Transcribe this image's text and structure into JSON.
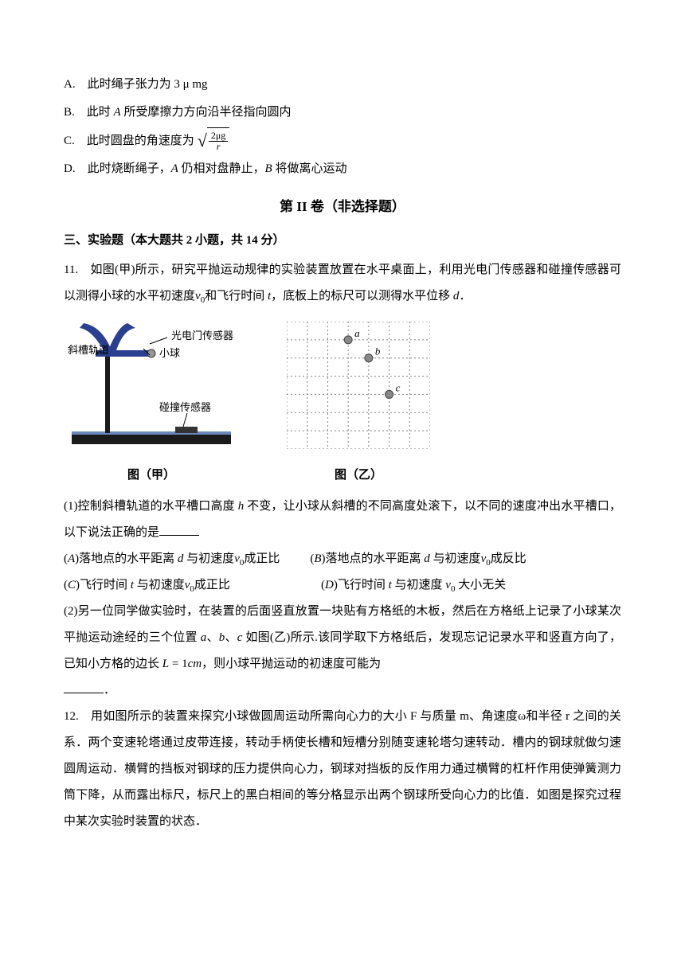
{
  "optA": "A. 此时绳子张力为 3 μ mg",
  "optB_pre": "B. 此时 ",
  "optB_A": "A",
  "optB_post": " 所受摩擦力方向沿半径指向圆内",
  "optC_pre": "C. 此时圆盘的角速度为",
  "optC_frac_num": "2μg",
  "optC_frac_den": "r",
  "optD_pre": "D. 此时烧断绳子，",
  "optD_A": "A",
  "optD_mid": " 仍相对盘静止，",
  "optD_B": "B",
  "optD_post": " 将做离心运动",
  "section2": "第 II 卷（非选择题）",
  "subsection3": "三、实验题（本大题共 2 小题，共 14 分）",
  "q11_num": "11.",
  "q11_body_1": " 如图(甲)所示，研究平抛运动规律的实验装置放置在水平桌面上，利用光电门传感器和碰撞传感器可以测得小球的水平初速度",
  "q11_v0a": "v",
  "q11_v0b": "0",
  "q11_body_2": "和飞行时间 ",
  "q11_t": "t",
  "q11_body_3": "，底板上的标尺可以测得水平位移 ",
  "q11_d": "d",
  "q11_period": "．",
  "fig_labels": {
    "sensor": "光电门传感器",
    "track": "斜槽轨道",
    "ball": "小球",
    "collision": "碰撞传感器",
    "caption1": "图（甲）",
    "caption2": "图（乙）",
    "a": "a",
    "b": "b",
    "c": "c"
  },
  "q11_1_pre": "(1)控制斜槽轨道的水平槽口高度 ",
  "q11_h": "h",
  "q11_1_post": " 不变，让小球从斜槽的不同高度处滚下，以不同的速度冲出水平槽口，以下说法正确的是",
  "q11_optA_pre": "(",
  "q11_optA_letter": "A",
  "q11_optA_body1": ")落地点的水平距离 ",
  "q11_optA_d": "d",
  "q11_optA_body2": " 与初速度",
  "q11_optA_v": "v",
  "q11_optA_0": "0",
  "q11_optA_body3": "成正比",
  "q11_optB_pre": "(",
  "q11_optB_letter": "B",
  "q11_optB_body": ")落地点的水平距离 ",
  "q11_optB_d": "d",
  "q11_optB_body2": " 与初速度",
  "q11_optB_v": "v",
  "q11_optB_0": "0",
  "q11_optB_body3": "成反比",
  "q11_optC_pre": "(",
  "q11_optC_letter": "C",
  "q11_optC_body1": ")飞行时间 ",
  "q11_optC_t": "t",
  "q11_optC_body2": " 与初速度",
  "q11_optC_v": "v",
  "q11_optC_0": "0",
  "q11_optC_body3": "成正比",
  "q11_optD_pre": "(",
  "q11_optD_letter": "D",
  "q11_optD_body1": ")飞行时间 ",
  "q11_optD_t": "t",
  "q11_optD_body2": " 与初速度 ",
  "q11_optD_v": "v",
  "q11_optD_0": "0",
  "q11_optD_body3": " 大小无关",
  "q11_2_body1": "(2)另一位同学做实验时，在装置的后面竖直放置一块贴有方格纸的木板，然后在方格纸上记录了小球某次平抛运动途经的三个位置 ",
  "q11_2_a": "a",
  "q11_2_sep1": "、",
  "q11_2_b": "b",
  "q11_2_sep2": "、",
  "q11_2_c": "c",
  "q11_2_body2": " 如图(乙)所示.该同学取下方格纸后，发现忘记记录水平和竖直方向了，已知小方格的边长 ",
  "q11_2_L": "L",
  "q11_2_eq": " = 1",
  "q11_2_cm": "cm",
  "q11_2_body3": "，则小球平抛运动的初速度可能为",
  "q11_2_end": "．",
  "q12_num": "12.",
  "q12_body": " 用如图所示的装置来探究小球做圆周运动所需向心力的大小 F 与质量 m、角速度ω和半径 r 之间的关系．两个变速轮塔通过皮带连接，转动手柄使长槽和短槽分别随变速轮塔匀速转动．槽内的钢球就做匀速圆周运动．横臂的挡板对钢球的压力提供向心力，钢球对挡板的反作用力通过横臂的杠杆作用使弹簧测力筒下降，从而露出标尺，标尺上的黑白相间的等分格显示出两个钢球所受向心力的比值．如图是探究过程中某次实验时装置的状态．",
  "colors": {
    "text": "#000000",
    "bg": "#ffffff",
    "grid_line": "#808080",
    "ball_fill": "#888888",
    "apparatus_blue": "#2a3f8f",
    "apparatus_base": "#1a1a1a"
  },
  "grid": {
    "cells": 7,
    "points": [
      {
        "col": 3,
        "row": 1,
        "label": "a"
      },
      {
        "col": 4,
        "row": 2,
        "label": "b"
      },
      {
        "col": 5,
        "row": 4,
        "label": "c"
      }
    ]
  }
}
